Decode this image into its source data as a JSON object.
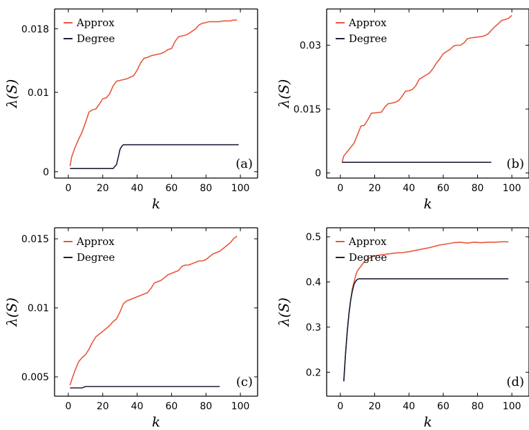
{
  "colors": {
    "approx": "#e8553a",
    "degree": "#1c1c3a"
  },
  "chart_data": [
    {
      "type": "line",
      "panel_label": "(a)",
      "xlabel": "k",
      "ylabel": "λ(S)",
      "xlim": [
        -8,
        110
      ],
      "ylim": [
        -0.0008,
        0.0205
      ],
      "x_ticks": [
        0,
        20,
        40,
        60,
        80,
        100
      ],
      "y_ticks": [
        0,
        0.01,
        0.018
      ],
      "y_tick_labels": [
        "0",
        "0.01",
        "0.018"
      ],
      "legend_position": "top-left",
      "series": [
        {
          "name": "Approx",
          "color_key": "approx",
          "x": [
            1,
            2,
            4,
            6,
            8,
            10,
            12,
            14,
            16,
            18,
            20,
            22,
            24,
            26,
            28,
            30,
            32,
            34,
            36,
            38,
            40,
            42,
            44,
            46,
            48,
            50,
            52,
            54,
            56,
            58,
            60,
            62,
            64,
            66,
            68,
            70,
            72,
            74,
            76,
            78,
            80,
            82,
            84,
            86,
            88,
            90,
            92,
            94,
            96,
            98
          ],
          "y": [
            0.0007,
            0.0019,
            0.0031,
            0.0041,
            0.005,
            0.0062,
            0.0075,
            0.0078,
            0.0079,
            0.0085,
            0.0092,
            0.0093,
            0.0098,
            0.0108,
            0.0114,
            0.0115,
            0.0116,
            0.0117,
            0.0119,
            0.0121,
            0.0128,
            0.0137,
            0.0143,
            0.0144,
            0.0146,
            0.0147,
            0.0148,
            0.0149,
            0.0151,
            0.0154,
            0.0155,
            0.0164,
            0.017,
            0.0171,
            0.0172,
            0.0174,
            0.0177,
            0.018,
            0.0185,
            0.0187,
            0.0188,
            0.0189,
            0.0189,
            0.0189,
            0.0189,
            0.019,
            0.019,
            0.019,
            0.0191,
            0.0191
          ]
        },
        {
          "name": "Degree",
          "color_key": "degree",
          "x": [
            1,
            26,
            28,
            29,
            30,
            31,
            32,
            34,
            99
          ],
          "y": [
            0.0004,
            0.0004,
            0.0009,
            0.0018,
            0.0028,
            0.0032,
            0.0034,
            0.0034,
            0.0034
          ]
        }
      ]
    },
    {
      "type": "line",
      "panel_label": "(b)",
      "xlabel": "k",
      "ylabel": "λ(S)",
      "xlim": [
        -8,
        110
      ],
      "ylim": [
        -0.0012,
        0.0385
      ],
      "x_ticks": [
        0,
        20,
        40,
        60,
        80,
        100
      ],
      "y_ticks": [
        0,
        0.015,
        0.03
      ],
      "y_tick_labels": [
        "0",
        "0.015",
        "0.03"
      ],
      "legend_position": "top-left",
      "series": [
        {
          "name": "Approx",
          "color_key": "approx",
          "x": [
            1,
            2,
            4,
            6,
            8,
            10,
            12,
            14,
            16,
            18,
            20,
            22,
            24,
            26,
            28,
            30,
            32,
            34,
            36,
            38,
            40,
            42,
            44,
            46,
            48,
            50,
            52,
            54,
            56,
            58,
            60,
            62,
            64,
            66,
            68,
            70,
            72,
            74,
            76,
            78,
            80,
            82,
            84,
            86,
            88,
            90,
            92,
            94,
            96,
            98,
            100
          ],
          "y": [
            0.0025,
            0.004,
            0.005,
            0.006,
            0.007,
            0.009,
            0.011,
            0.0112,
            0.0125,
            0.014,
            0.0141,
            0.0142,
            0.0143,
            0.0155,
            0.0163,
            0.0164,
            0.0166,
            0.017,
            0.018,
            0.0192,
            0.0193,
            0.0196,
            0.0205,
            0.022,
            0.0225,
            0.023,
            0.0235,
            0.0245,
            0.0258,
            0.0268,
            0.028,
            0.0285,
            0.029,
            0.0298,
            0.03,
            0.03,
            0.0305,
            0.0315,
            0.0317,
            0.0318,
            0.0319,
            0.032,
            0.0322,
            0.0326,
            0.0335,
            0.0343,
            0.035,
            0.0358,
            0.036,
            0.0363,
            0.037
          ]
        },
        {
          "name": "Degree",
          "color_key": "degree",
          "x": [
            1,
            88
          ],
          "y": [
            0.0025,
            0.0025
          ]
        }
      ]
    },
    {
      "type": "line",
      "panel_label": "(c)",
      "xlabel": "k",
      "ylabel": "λ(S)",
      "xlim": [
        -8,
        110
      ],
      "ylim": [
        0.0036,
        0.0158
      ],
      "x_ticks": [
        0,
        20,
        40,
        60,
        80,
        100
      ],
      "y_ticks": [
        0.005,
        0.01,
        0.015
      ],
      "y_tick_labels": [
        "0.005",
        "0.01",
        "0.015"
      ],
      "legend_position": "top-left",
      "series": [
        {
          "name": "Approx",
          "color_key": "approx",
          "x": [
            1,
            2,
            4,
            6,
            8,
            10,
            12,
            14,
            16,
            18,
            20,
            22,
            24,
            26,
            28,
            30,
            32,
            34,
            36,
            38,
            40,
            42,
            44,
            46,
            48,
            50,
            52,
            54,
            56,
            58,
            60,
            62,
            64,
            66,
            68,
            70,
            72,
            74,
            76,
            78,
            80,
            82,
            84,
            86,
            88,
            90,
            92,
            94,
            96,
            98
          ],
          "y": [
            0.0044,
            0.0048,
            0.0055,
            0.0061,
            0.0064,
            0.0066,
            0.007,
            0.0075,
            0.0079,
            0.0081,
            0.0083,
            0.0085,
            0.0087,
            0.009,
            0.0092,
            0.0097,
            0.0103,
            0.0105,
            0.0106,
            0.0107,
            0.0108,
            0.0109,
            0.011,
            0.0111,
            0.0114,
            0.0118,
            0.0119,
            0.012,
            0.0122,
            0.0124,
            0.0125,
            0.0126,
            0.0127,
            0.013,
            0.0131,
            0.0131,
            0.0132,
            0.0133,
            0.0134,
            0.0134,
            0.0135,
            0.0137,
            0.0139,
            0.014,
            0.0141,
            0.0143,
            0.0145,
            0.0147,
            0.015,
            0.0152
          ]
        },
        {
          "name": "Degree",
          "color_key": "degree",
          "x": [
            1,
            8,
            10,
            88
          ],
          "y": [
            0.0042,
            0.0042,
            0.0043,
            0.0043
          ]
        }
      ]
    },
    {
      "type": "line",
      "panel_label": "(d)",
      "xlabel": "k",
      "ylabel": "λ(S)",
      "xlim": [
        -8,
        110
      ],
      "ylim": [
        0.147,
        0.52
      ],
      "x_ticks": [
        0,
        20,
        40,
        60,
        80,
        100
      ],
      "y_ticks": [
        0.2,
        0.3,
        0.4,
        0.5
      ],
      "y_tick_labels": [
        "0.2",
        "0.3",
        "0.4",
        "0.5"
      ],
      "legend_position": "top-left",
      "series": [
        {
          "name": "Approx",
          "color_key": "approx",
          "x": [
            2,
            3,
            4,
            5,
            6,
            7,
            8,
            9,
            10,
            12,
            14,
            16,
            18,
            20,
            24,
            28,
            32,
            36,
            40,
            44,
            48,
            52,
            54,
            58,
            62,
            66,
            70,
            74,
            78,
            82,
            86,
            90,
            94,
            98
          ],
          "y": [
            0.18,
            0.24,
            0.29,
            0.33,
            0.36,
            0.385,
            0.4,
            0.415,
            0.425,
            0.435,
            0.445,
            0.451,
            0.455,
            0.458,
            0.46,
            0.462,
            0.464,
            0.465,
            0.467,
            0.47,
            0.473,
            0.476,
            0.478,
            0.482,
            0.484,
            0.487,
            0.488,
            0.486,
            0.488,
            0.487,
            0.488,
            0.488,
            0.489,
            0.489
          ]
        },
        {
          "name": "Degree",
          "color_key": "degree",
          "x": [
            2,
            3,
            4,
            5,
            6,
            7,
            8,
            9,
            10,
            11,
            98
          ],
          "y": [
            0.18,
            0.24,
            0.29,
            0.33,
            0.36,
            0.38,
            0.395,
            0.402,
            0.406,
            0.407,
            0.407
          ]
        }
      ]
    }
  ]
}
